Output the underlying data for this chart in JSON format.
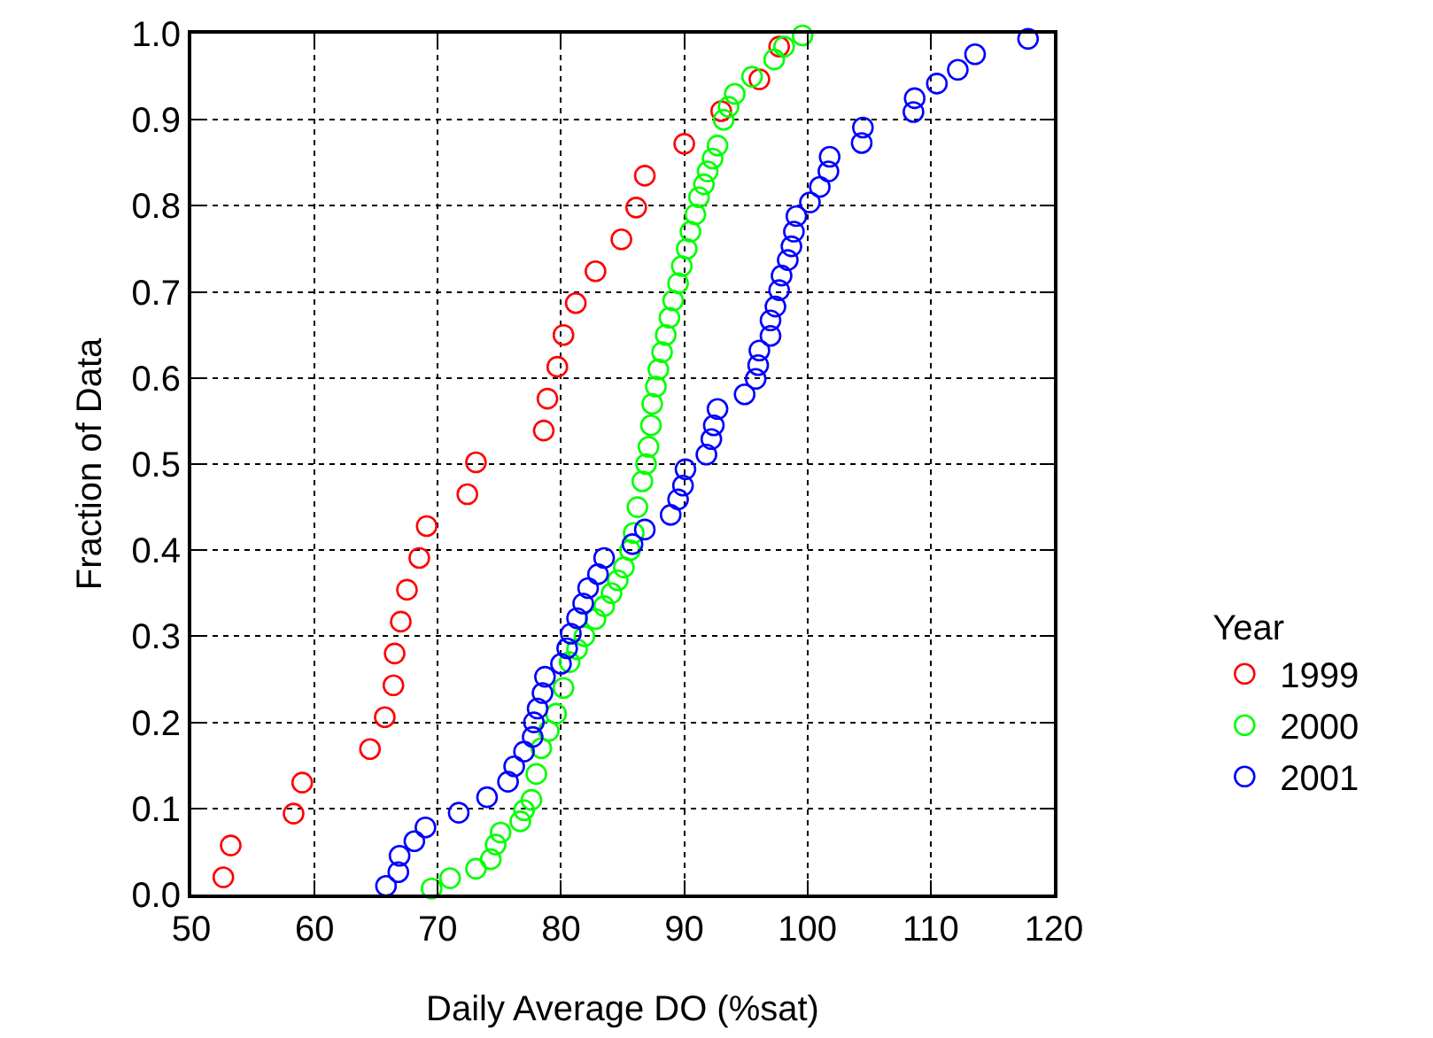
{
  "chart_data": {
    "type": "scatter",
    "xlabel": "Daily Average DO (%sat)",
    "ylabel": "Fraction of Data",
    "legend_title": "Year",
    "legend": "right",
    "grid": true,
    "marker": "circle",
    "xlim": [
      50,
      120
    ],
    "xticks": [
      50,
      60,
      70,
      80,
      90,
      100,
      110,
      120
    ],
    "ylim": [
      0,
      1
    ],
    "yticks": [
      {
        "value": 0,
        "label": "0.0"
      },
      {
        "value": 0.1,
        "label": "0.1"
      },
      {
        "value": 0.2,
        "label": "0.2"
      },
      {
        "value": 0.3,
        "label": "0.3"
      },
      {
        "value": 0.4,
        "label": "0.4"
      },
      {
        "value": 0.5,
        "label": "0.5"
      },
      {
        "value": 0.6,
        "label": "0.6"
      },
      {
        "value": 0.7,
        "label": "0.7"
      },
      {
        "value": 0.8,
        "label": "0.8"
      },
      {
        "value": 0.9,
        "label": "0.9"
      },
      {
        "value": 1,
        "label": "1.0"
      }
    ],
    "series": [
      {
        "name": "1999",
        "color": "#ff0000",
        "x": [
          52.6,
          53.2,
          58.3,
          59.0,
          64.5,
          65.7,
          66.4,
          66.5,
          67.0,
          67.5,
          68.5,
          69.1,
          72.4,
          73.1,
          78.6,
          78.9,
          79.7,
          80.2,
          81.2,
          82.8,
          84.9,
          86.1,
          86.8,
          90.0,
          93.0,
          96.1,
          97.7
        ],
        "values": [
          0.02,
          0.057,
          0.094,
          0.13,
          0.169,
          0.206,
          0.243,
          0.28,
          0.317,
          0.354,
          0.391,
          0.428,
          0.465,
          0.502,
          0.539,
          0.576,
          0.613,
          0.65,
          0.687,
          0.724,
          0.761,
          0.798,
          0.835,
          0.872,
          0.91,
          0.947,
          0.985
        ]
      },
      {
        "name": "2000",
        "color": "#00ff00",
        "x": [
          69.5,
          71.0,
          73.1,
          74.3,
          74.7,
          75.1,
          76.7,
          77.0,
          77.6,
          78.0,
          78.4,
          79.0,
          79.6,
          80.2,
          80.7,
          81.3,
          81.9,
          82.8,
          83.5,
          84.1,
          84.6,
          85.1,
          85.6,
          85.9,
          86.2,
          86.6,
          86.9,
          87.1,
          87.3,
          87.4,
          87.7,
          87.9,
          88.2,
          88.5,
          88.8,
          89.1,
          89.5,
          89.8,
          90.2,
          90.5,
          90.9,
          91.2,
          91.6,
          91.9,
          92.3,
          92.7,
          93.2,
          93.6,
          94.1,
          95.5,
          97.3,
          98.1,
          99.6
        ],
        "values": [
          0.007,
          0.019,
          0.03,
          0.041,
          0.058,
          0.072,
          0.085,
          0.098,
          0.11,
          0.14,
          0.17,
          0.19,
          0.21,
          0.24,
          0.27,
          0.285,
          0.3,
          0.32,
          0.335,
          0.35,
          0.365,
          0.38,
          0.4,
          0.42,
          0.45,
          0.48,
          0.5,
          0.52,
          0.545,
          0.57,
          0.59,
          0.61,
          0.63,
          0.65,
          0.67,
          0.69,
          0.71,
          0.73,
          0.75,
          0.77,
          0.79,
          0.81,
          0.825,
          0.84,
          0.855,
          0.87,
          0.9,
          0.915,
          0.93,
          0.95,
          0.97,
          0.985,
          0.998
        ]
      },
      {
        "name": "2001",
        "color": "#0000ff",
        "x": [
          65.8,
          66.8,
          66.9,
          68.1,
          69.0,
          71.7,
          74.0,
          75.7,
          76.2,
          77.0,
          77.7,
          77.8,
          78.1,
          78.5,
          78.7,
          80.0,
          80.5,
          80.8,
          81.3,
          81.8,
          82.2,
          83.0,
          83.5,
          85.8,
          86.8,
          88.9,
          89.5,
          89.9,
          90.1,
          91.8,
          92.2,
          92.4,
          92.7,
          94.9,
          95.8,
          96.0,
          96.1,
          97.0,
          97.0,
          97.4,
          97.7,
          97.9,
          98.4,
          98.7,
          98.9,
          99.1,
          100.2,
          101.0,
          101.7,
          101.8,
          104.4,
          104.5,
          108.6,
          108.7,
          110.5,
          112.2,
          113.6,
          117.9
        ],
        "values": [
          0.01,
          0.026,
          0.045,
          0.062,
          0.078,
          0.095,
          0.113,
          0.131,
          0.149,
          0.166,
          0.183,
          0.2,
          0.216,
          0.234,
          0.253,
          0.268,
          0.286,
          0.303,
          0.321,
          0.338,
          0.356,
          0.372,
          0.391,
          0.407,
          0.424,
          0.441,
          0.459,
          0.475,
          0.494,
          0.511,
          0.529,
          0.545,
          0.564,
          0.581,
          0.599,
          0.615,
          0.632,
          0.649,
          0.667,
          0.683,
          0.702,
          0.719,
          0.737,
          0.753,
          0.77,
          0.788,
          0.804,
          0.822,
          0.84,
          0.857,
          0.873,
          0.891,
          0.909,
          0.925,
          0.942,
          0.958,
          0.976,
          0.994
        ]
      }
    ]
  }
}
